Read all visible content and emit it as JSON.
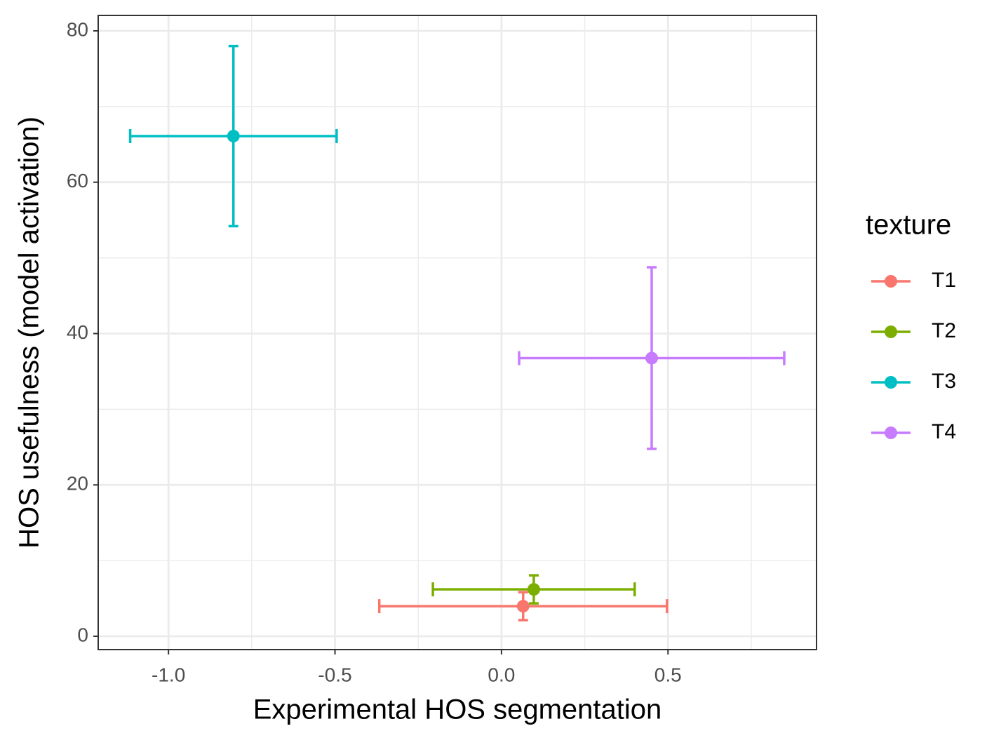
{
  "chart_data": {
    "type": "errorbar-scatter",
    "x_label": "Experimental HOS segmentation",
    "y_label": "HOS usefulness (model activation)",
    "legend_title": "texture",
    "legend_position": "right",
    "grid": true,
    "xlim": [
      -1.211,
      0.946
    ],
    "ylim": [
      -1.76,
      82.04
    ],
    "xticks": [
      {
        "value": -1.0,
        "label": "-1.0"
      },
      {
        "value": -0.5,
        "label": "-0.5"
      },
      {
        "value": 0.0,
        "label": "0.0"
      },
      {
        "value": 0.5,
        "label": "0.5"
      }
    ],
    "yticks": [
      0,
      20,
      40,
      60,
      80
    ],
    "x_minor_ticks": [
      -0.75,
      -0.25,
      0.25,
      0.75
    ],
    "y_minor_ticks": [
      10,
      30,
      50,
      70
    ],
    "series": [
      {
        "name": "T1",
        "color": "#f8766d",
        "x": 0.065,
        "y": 3.98,
        "xerr": 0.432,
        "yerr": 1.85
      },
      {
        "name": "T2",
        "color": "#7cae00",
        "x": 0.097,
        "y": 6.2,
        "xerr": 0.303,
        "yerr": 1.85
      },
      {
        "name": "T3",
        "color": "#00bfc4",
        "x": -0.805,
        "y": 66.1,
        "xerr": 0.31,
        "yerr": 11.9
      },
      {
        "name": "T4",
        "color": "#c77cff",
        "x": 0.451,
        "y": 36.76,
        "xerr": 0.398,
        "yerr": 12.0
      }
    ]
  }
}
